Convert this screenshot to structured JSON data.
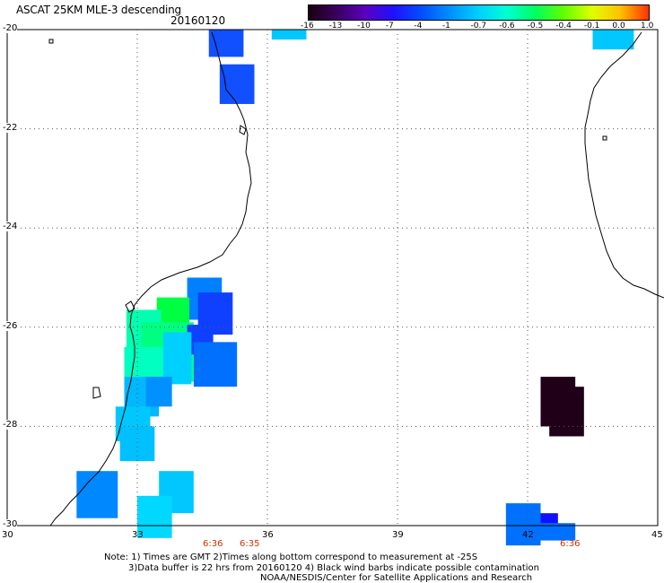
{
  "title": "ASCAT 25KM MLE-3 descending",
  "date": "20160120",
  "colorbar": {
    "labels": [
      "-16",
      "-13",
      "-10",
      "-7",
      "-4",
      "-1",
      "-0.7",
      "-0.6",
      "-0.5",
      "-0.4",
      "-0.1",
      "0.0",
      "1.0"
    ],
    "colors": [
      "#1a0010",
      "#3a0060",
      "#5a00c0",
      "#2010ff",
      "#0050ff",
      "#0090ff",
      "#00d0ff",
      "#00ffd0",
      "#00ff60",
      "#60ff00",
      "#e0ff00",
      "#ffc000",
      "#ff3000"
    ]
  },
  "axes": {
    "x_ticks": [
      "30",
      "33",
      "36",
      "39",
      "42",
      "45"
    ],
    "y_ticks": [
      "-20",
      "-22",
      "-24",
      "-26",
      "-28",
      "-30"
    ]
  },
  "times": [
    "6:36",
    "6:35",
    "6:36"
  ],
  "notes": [
    "Note: 1) Times are GMT 2)Times along bottom correspond to measurement at -25S",
    "3)Data buffer is 22 hrs from 20160120 4) Black wind barbs indicate possible contamination",
    "NOAA/NESDIS/Center for Satellite Applications and Research"
  ],
  "cells": [
    {
      "lon": 34.65,
      "lat": -20.0,
      "w": 0.8,
      "h": 0.55,
      "value": -7,
      "color": "#1050ff"
    },
    {
      "lon": 36.1,
      "lat": -20.0,
      "w": 0.8,
      "h": 0.2,
      "value": -1,
      "color": "#00c8ff"
    },
    {
      "lon": 43.5,
      "lat": -20.0,
      "w": 0.95,
      "h": 0.4,
      "value": -1,
      "color": "#00c8ff"
    },
    {
      "lon": 34.9,
      "lat": -20.7,
      "w": 0.8,
      "h": 0.8,
      "value": -7,
      "color": "#1050ff"
    },
    {
      "lon": 34.15,
      "lat": -25.0,
      "w": 0.8,
      "h": 0.85,
      "value": -4,
      "color": "#0080ff"
    },
    {
      "lon": 33.45,
      "lat": -25.4,
      "w": 0.75,
      "h": 0.75,
      "value": -0.5,
      "color": "#00ff40"
    },
    {
      "lon": 34.4,
      "lat": -25.3,
      "w": 0.8,
      "h": 0.85,
      "value": -7,
      "color": "#1040ff"
    },
    {
      "lon": 32.75,
      "lat": -25.65,
      "w": 0.8,
      "h": 0.8,
      "value": -0.7,
      "color": "#00ffb0"
    },
    {
      "lon": 33.1,
      "lat": -25.9,
      "w": 1.2,
      "h": 1.2,
      "value": -0.6,
      "color": "#00ff80"
    },
    {
      "lon": 34.15,
      "lat": -25.95,
      "w": 0.6,
      "h": 0.6,
      "value": -7,
      "color": "#1040ff"
    },
    {
      "lon": 34.3,
      "lat": -26.3,
      "w": 1.0,
      "h": 0.9,
      "value": -4,
      "color": "#0070ff"
    },
    {
      "lon": 33.6,
      "lat": -26.1,
      "w": 0.65,
      "h": 1.05,
      "value": -1,
      "color": "#00d0ff"
    },
    {
      "lon": 32.7,
      "lat": -26.4,
      "w": 0.9,
      "h": 0.6,
      "value": -0.7,
      "color": "#00ffc0"
    },
    {
      "lon": 32.7,
      "lat": -27.0,
      "w": 0.8,
      "h": 0.8,
      "value": -1,
      "color": "#00b8ff"
    },
    {
      "lon": 33.2,
      "lat": -27.0,
      "w": 0.6,
      "h": 0.6,
      "value": -4,
      "color": "#0090ff"
    },
    {
      "lon": 32.5,
      "lat": -27.6,
      "w": 0.8,
      "h": 0.7,
      "value": -1,
      "color": "#00c8ff"
    },
    {
      "lon": 32.6,
      "lat": -28.0,
      "w": 0.8,
      "h": 0.7,
      "value": -1,
      "color": "#00c0ff"
    },
    {
      "lon": 31.6,
      "lat": -28.9,
      "w": 0.95,
      "h": 0.95,
      "value": -4,
      "color": "#0088ff"
    },
    {
      "lon": 33.5,
      "lat": -28.9,
      "w": 0.8,
      "h": 0.85,
      "value": -1,
      "color": "#00c8ff"
    },
    {
      "lon": 33.0,
      "lat": -29.4,
      "w": 0.8,
      "h": 0.85,
      "value": -1,
      "color": "#00d8ff"
    },
    {
      "lon": 41.5,
      "lat": -29.55,
      "w": 0.8,
      "h": 0.85,
      "value": -4,
      "color": "#0070ff"
    },
    {
      "lon": 42.3,
      "lat": -29.75,
      "w": 0.4,
      "h": 0.25,
      "value": -7,
      "color": "#1010ff"
    },
    {
      "lon": 42.3,
      "lat": -29.95,
      "w": 0.8,
      "h": 0.35,
      "value": -4,
      "color": "#0070ff"
    },
    {
      "lon": 42.3,
      "lat": -27.0,
      "w": 0.8,
      "h": 1.0,
      "value": -16,
      "color": "#200018"
    },
    {
      "lon": 42.5,
      "lat": -27.2,
      "w": 0.8,
      "h": 1.0,
      "value": -16,
      "color": "#200018"
    }
  ]
}
